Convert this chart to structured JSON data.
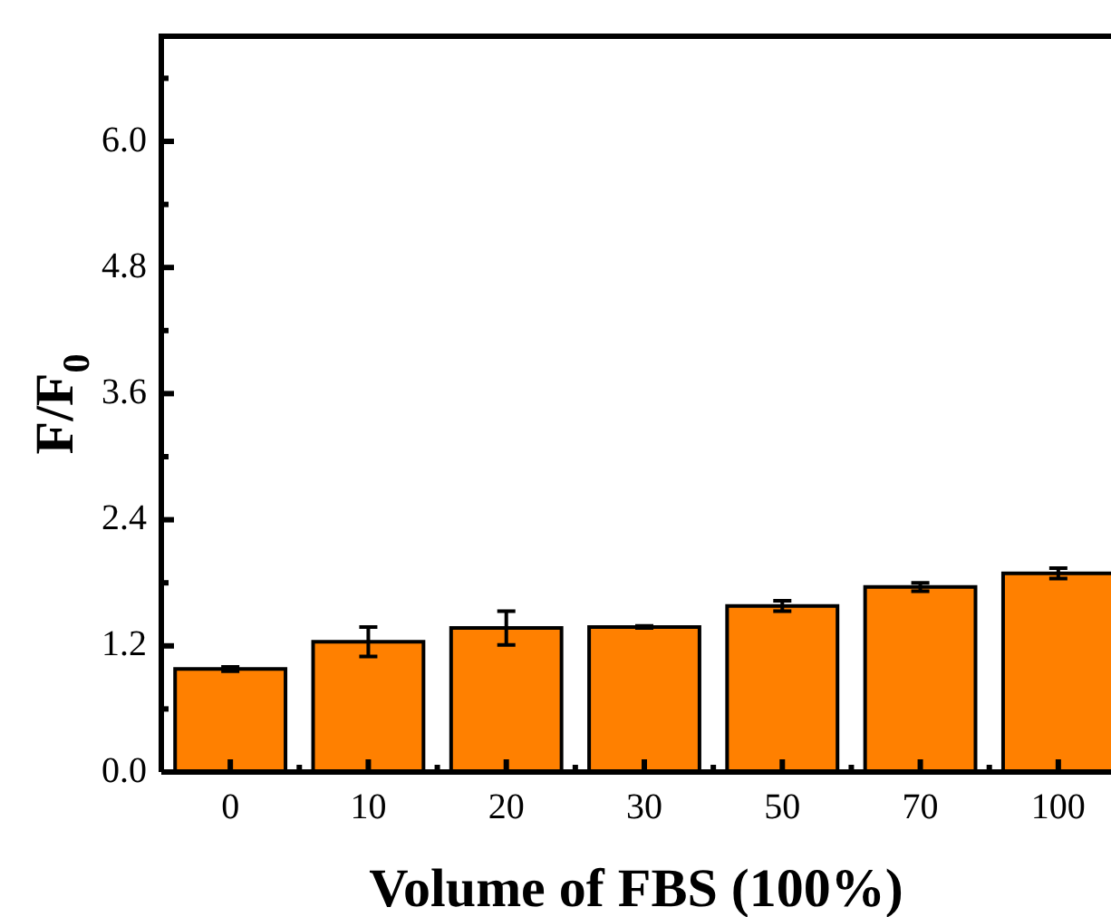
{
  "chart_data": {
    "type": "bar",
    "xlabel": "Volume of FBS (100%)",
    "ylabel": "F/F$_{0}$",
    "categories": [
      "0",
      "10",
      "20",
      "30",
      "50",
      "70",
      "100"
    ],
    "values": [
      0.98,
      1.24,
      1.37,
      1.38,
      1.58,
      1.76,
      1.89
    ],
    "errors": [
      0.02,
      0.14,
      0.16,
      0.01,
      0.05,
      0.04,
      0.05
    ],
    "color": "#ff8000",
    "ylim": [
      0,
      7
    ],
    "yticks": [
      {
        "value": 0,
        "label": "0.0"
      },
      {
        "value": 0.6,
        "label": null
      },
      1.2,
      {
        "value": 1.8,
        "label": null
      },
      2.4,
      {
        "value": 3,
        "label": null
      },
      3.6,
      {
        "value": 4.2,
        "label": null
      },
      4.8,
      {
        "value": 5.4,
        "label": null
      },
      {
        "value": 6,
        "label": "6.0"
      },
      {
        "value": 6.6,
        "label": null
      }
    ],
    "grid": false,
    "legend": false
  }
}
